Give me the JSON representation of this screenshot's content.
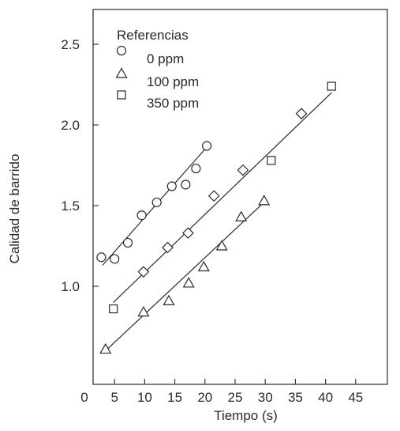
{
  "chart_data": {
    "type": "scatter",
    "title": "",
    "xlabel": "Tiempo (s)",
    "ylabel": "Calidad de barrido",
    "xlim": [
      0,
      45
    ],
    "ylim": [
      0.55,
      2.8
    ],
    "xticks": [
      0,
      5,
      10,
      15,
      20,
      25,
      30,
      35,
      40,
      45
    ],
    "yticks": [
      1.0,
      1.5,
      2.0,
      2.5
    ],
    "ytick_labels": [
      "1.0",
      "1.5",
      "2.0",
      "2.5"
    ],
    "grid": false,
    "legend": {
      "title": "Referencias",
      "position": "top-left"
    },
    "series": [
      {
        "name": "0 ppm",
        "marker": "circle",
        "points": [
          [
            2.8,
            1.18
          ],
          [
            5.0,
            1.17
          ],
          [
            7.2,
            1.27
          ],
          [
            9.5,
            1.44
          ],
          [
            12.0,
            1.52
          ],
          [
            14.5,
            1.62
          ],
          [
            16.8,
            1.63
          ],
          [
            18.5,
            1.73
          ],
          [
            20.3,
            1.87
          ]
        ],
        "fit": [
          [
            3.0,
            1.13
          ],
          [
            20.0,
            1.85
          ]
        ]
      },
      {
        "name": "100 ppm",
        "marker": "triangle",
        "points": [
          [
            3.5,
            0.61
          ],
          [
            9.8,
            0.84
          ],
          [
            14.0,
            0.91
          ],
          [
            17.3,
            1.02
          ],
          [
            19.8,
            1.12
          ],
          [
            22.8,
            1.25
          ],
          [
            26.0,
            1.43
          ],
          [
            29.8,
            1.53
          ]
        ],
        "fit": [
          [
            3.5,
            0.6
          ],
          [
            29.5,
            1.51
          ]
        ]
      },
      {
        "name": "350 ppm",
        "marker": "diamond",
        "points": [
          [
            9.8,
            1.09
          ],
          [
            13.8,
            1.24
          ],
          [
            17.2,
            1.33
          ],
          [
            21.5,
            1.56
          ],
          [
            26.3,
            1.72
          ],
          [
            36.0,
            2.07
          ]
        ],
        "fit": [
          [
            4.8,
            0.9
          ],
          [
            41.0,
            2.2
          ]
        ]
      },
      {
        "name": "",
        "marker": "square",
        "points": [
          [
            4.8,
            0.86
          ],
          [
            31.0,
            1.78
          ],
          [
            41.0,
            2.24
          ]
        ]
      }
    ]
  }
}
